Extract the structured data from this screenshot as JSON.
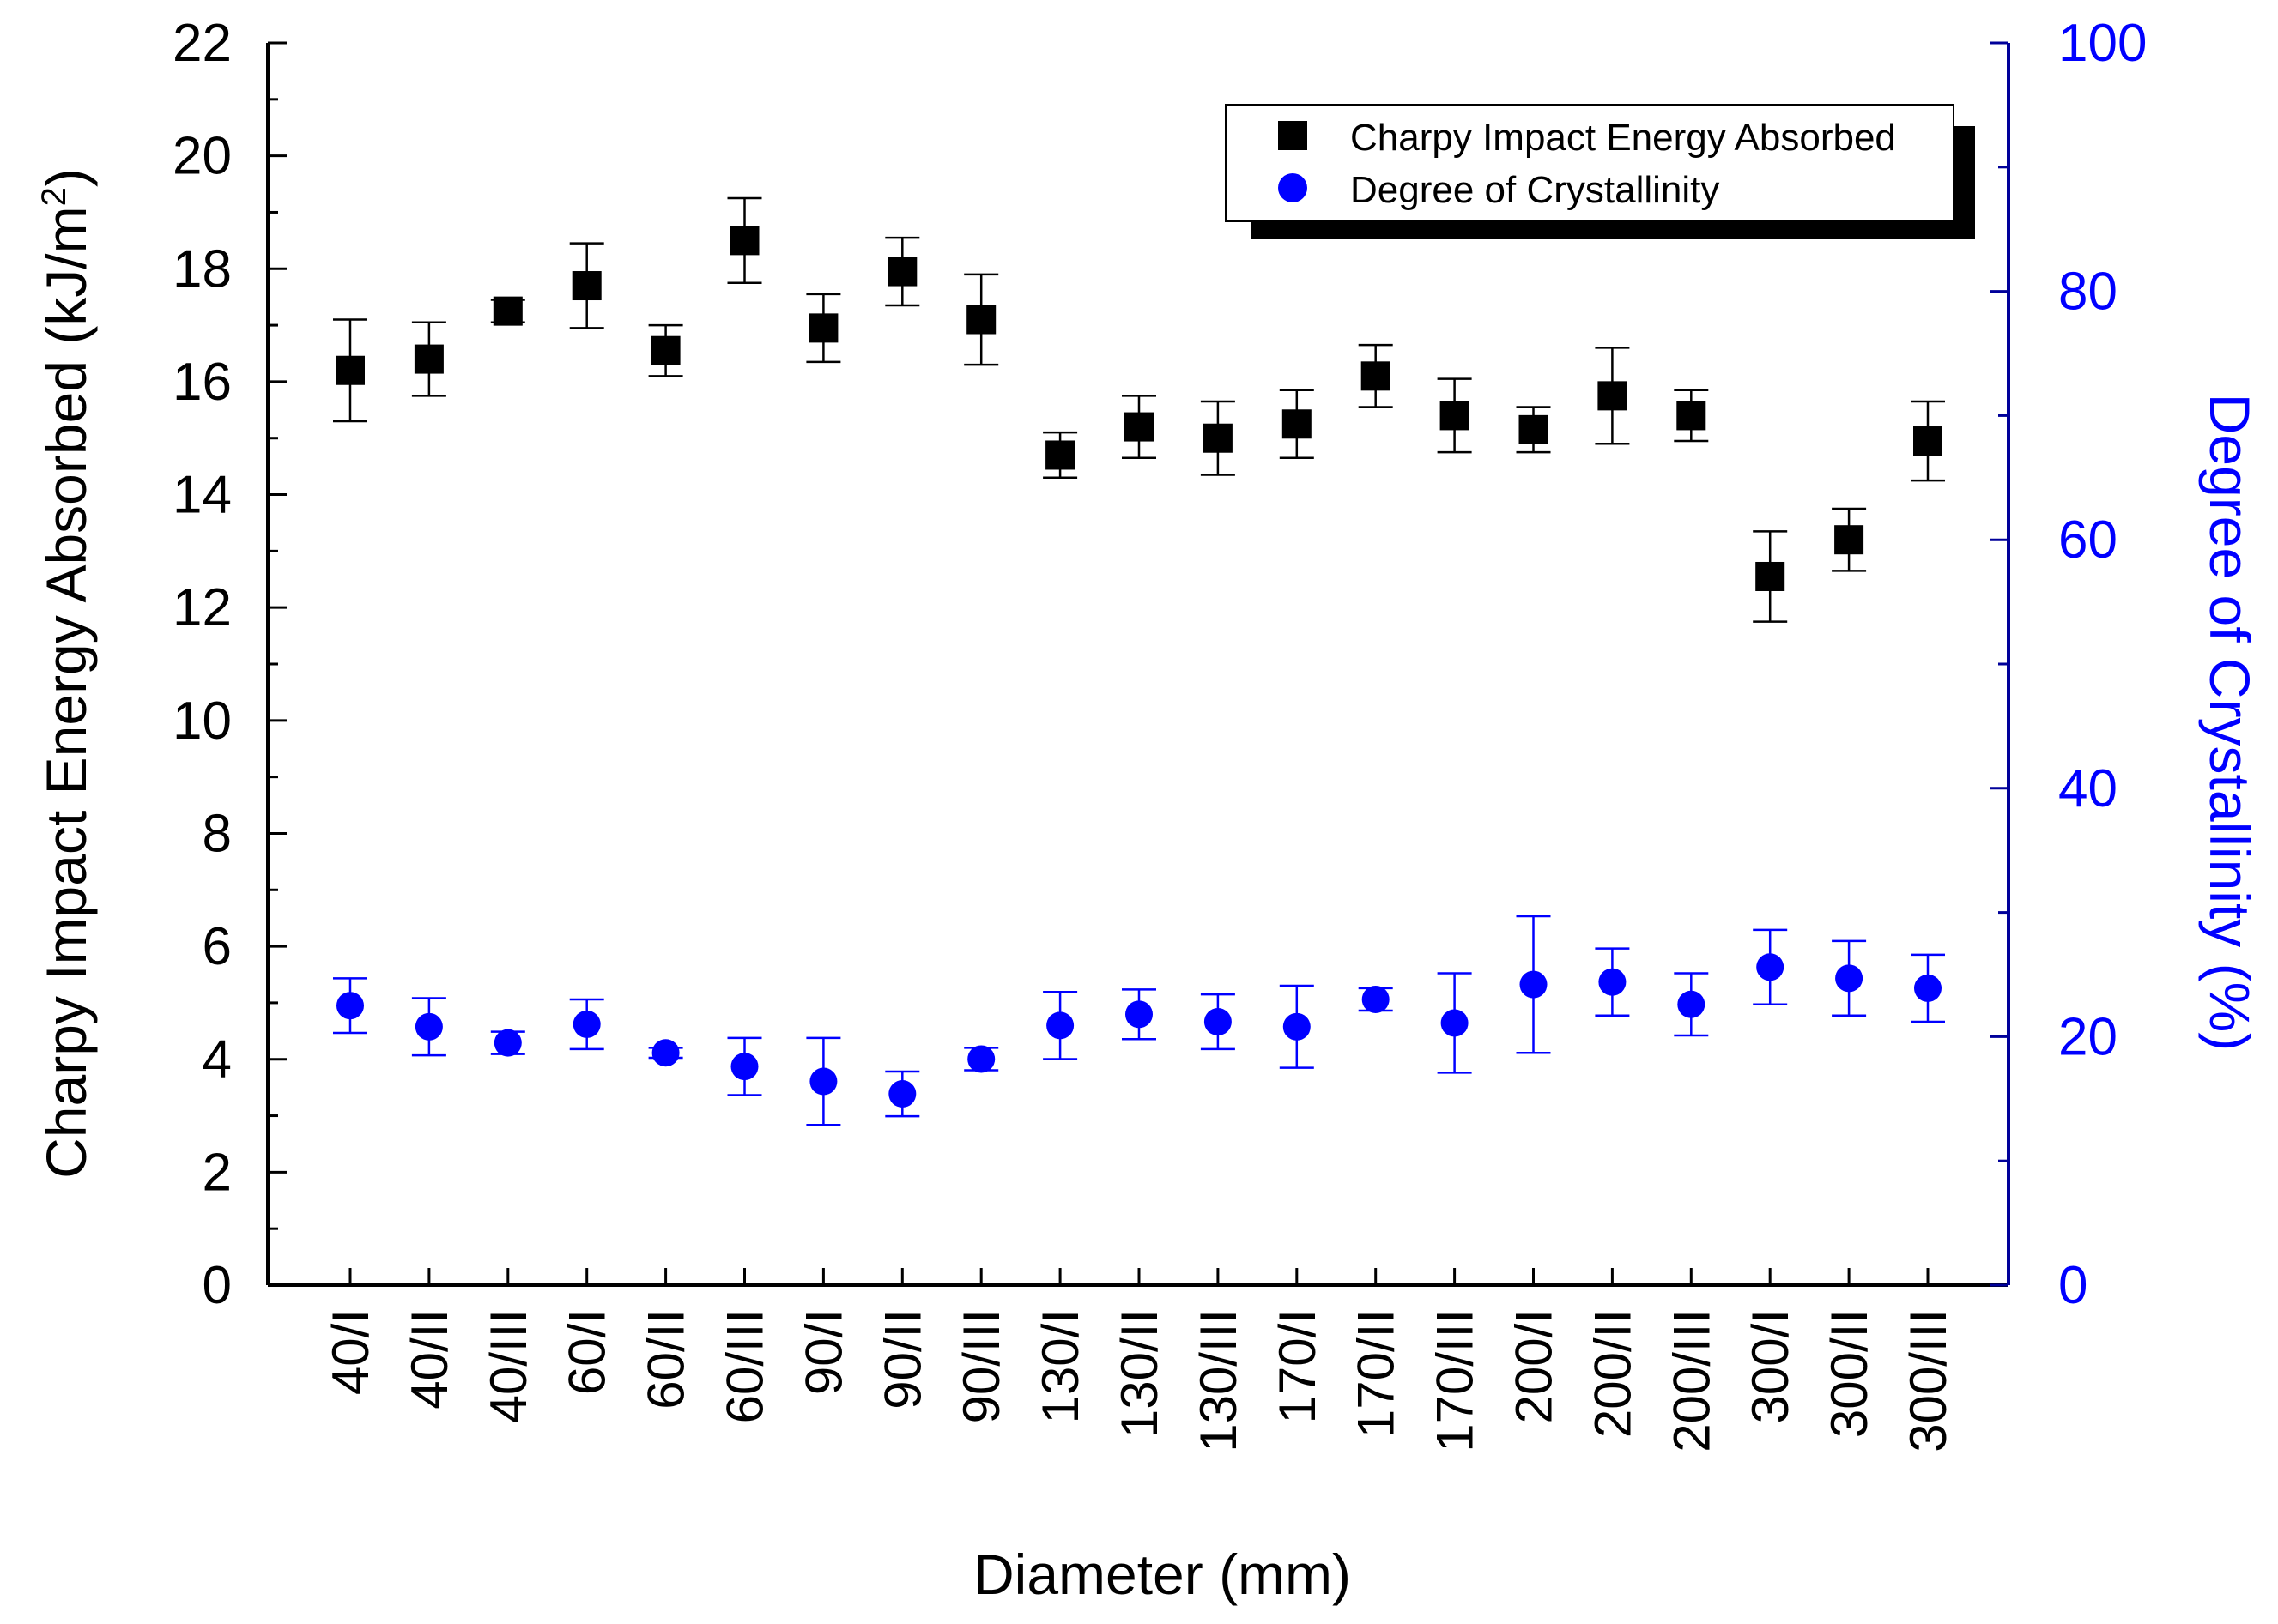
{
  "chart_data": {
    "type": "scatter",
    "xlabel": "Diameter (mm)",
    "ylabel_left": "Charpy Impact Energy Absorbed (kJ/m",
    "ylabel_left_superscript": "2",
    "ylabel_left_close": ")",
    "ylabel_right": "Degree of Crystallinity (%)",
    "ylim_left": [
      0,
      22
    ],
    "ylim_right": [
      0,
      100
    ],
    "yticks_left": [
      "0",
      "2",
      "4",
      "6",
      "8",
      "10",
      "12",
      "14",
      "16",
      "18",
      "20",
      "22"
    ],
    "yticks_right": [
      "0",
      "20",
      "40",
      "60",
      "80",
      "100"
    ],
    "categories": [
      "40/I",
      "40/II",
      "40/III",
      "60/I",
      "60/II",
      "60/III",
      "90/I",
      "90/II",
      "90/III",
      "130/I",
      "130/II",
      "130/III",
      "170/I",
      "170/II",
      "170/III",
      "200/I",
      "200/II",
      "200/III",
      "300/I",
      "300/II",
      "300/III"
    ],
    "legend_position": "top-right",
    "colors": {
      "impact": "#000000",
      "crystallinity": "#0000ff",
      "right_axis": "#00009a"
    },
    "series": [
      {
        "name": "Charpy Impact Energy Absorbed",
        "axis": "left",
        "marker": "square",
        "values": [
          16.2,
          16.4,
          17.25,
          17.7,
          16.55,
          18.5,
          16.95,
          17.95,
          17.1,
          14.7,
          15.2,
          15.0,
          15.25,
          16.1,
          15.4,
          15.15,
          15.75,
          15.4,
          12.55,
          13.2,
          14.95
        ],
        "errors": [
          0.9,
          0.65,
          0.2,
          0.75,
          0.45,
          0.75,
          0.6,
          0.6,
          0.8,
          0.4,
          0.55,
          0.65,
          0.6,
          0.55,
          0.65,
          0.4,
          0.85,
          0.45,
          0.8,
          0.55,
          0.7
        ]
      },
      {
        "name": "Degree of Crystallinity",
        "axis": "right",
        "marker": "circle",
        "values": [
          22.5,
          20.8,
          19.5,
          21.0,
          18.7,
          17.6,
          16.4,
          15.4,
          18.2,
          20.9,
          21.8,
          21.2,
          20.8,
          23.0,
          21.1,
          24.2,
          24.4,
          22.6,
          25.6,
          24.7,
          23.9
        ],
        "errors": [
          2.2,
          2.3,
          0.9,
          2.0,
          0.4,
          2.3,
          3.5,
          1.8,
          0.9,
          2.7,
          2.0,
          2.2,
          3.3,
          0.9,
          4.0,
          5.5,
          2.7,
          2.5,
          3.0,
          3.0,
          2.7
        ]
      }
    ]
  }
}
